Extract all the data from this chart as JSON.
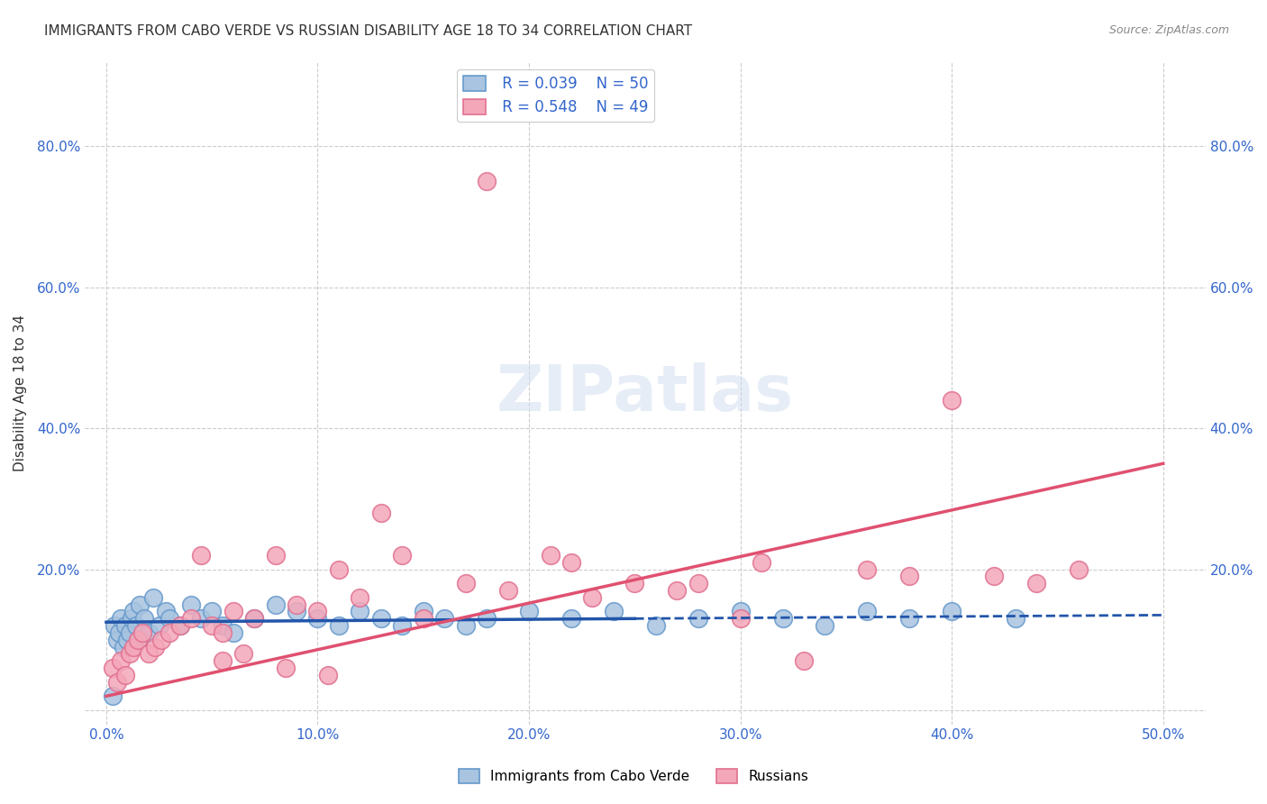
{
  "title": "IMMIGRANTS FROM CABO VERDE VS RUSSIAN DISABILITY AGE 18 TO 34 CORRELATION CHART",
  "source": "Source: ZipAtlas.com",
  "ylabel": "Disability Age 18 to 34",
  "x_ticks": [
    0.0,
    10.0,
    20.0,
    30.0,
    40.0,
    50.0
  ],
  "x_tick_labels": [
    "0.0%",
    "10.0%",
    "20.0%",
    "30.0%",
    "40.0%",
    "50.0%"
  ],
  "y_ticks": [
    0.0,
    0.2,
    0.4,
    0.6,
    0.8
  ],
  "y_tick_labels": [
    "",
    "20.0%",
    "40.0%",
    "60.0%",
    "80.0%"
  ],
  "xlim": [
    -1.0,
    52.0
  ],
  "ylim": [
    -0.02,
    0.92
  ],
  "blue_R": "0.039",
  "blue_N": "50",
  "pink_R": "0.548",
  "pink_N": "49",
  "blue_label": "Immigrants from Cabo Verde",
  "pink_label": "Russians",
  "blue_color": "#a8c4e0",
  "pink_color": "#f4a7b9",
  "blue_edge": "#6699cc",
  "pink_edge": "#e07090",
  "blue_line_color": "#2255aa",
  "pink_line_color": "#e05070",
  "watermark": "ZIPatlas",
  "blue_scatter_x": [
    0.4,
    0.5,
    0.6,
    0.7,
    0.8,
    0.9,
    1.0,
    1.1,
    1.2,
    1.3,
    1.4,
    1.5,
    1.6,
    1.8,
    2.0,
    2.2,
    2.5,
    2.8,
    3.0,
    3.5,
    4.0,
    4.5,
    5.0,
    5.5,
    6.0,
    7.0,
    8.0,
    9.0,
    10.0,
    11.0,
    12.0,
    13.0,
    14.0,
    15.0,
    16.0,
    17.0,
    18.0,
    20.0,
    22.0,
    24.0,
    26.0,
    28.0,
    30.0,
    32.0,
    34.0,
    36.0,
    38.0,
    40.0,
    43.0,
    0.3
  ],
  "blue_scatter_y": [
    0.12,
    0.1,
    0.11,
    0.13,
    0.09,
    0.12,
    0.1,
    0.11,
    0.13,
    0.14,
    0.12,
    0.1,
    0.15,
    0.13,
    0.11,
    0.16,
    0.12,
    0.14,
    0.13,
    0.12,
    0.15,
    0.13,
    0.14,
    0.12,
    0.11,
    0.13,
    0.15,
    0.14,
    0.13,
    0.12,
    0.14,
    0.13,
    0.12,
    0.14,
    0.13,
    0.12,
    0.13,
    0.14,
    0.13,
    0.14,
    0.12,
    0.13,
    0.14,
    0.13,
    0.12,
    0.14,
    0.13,
    0.14,
    0.13,
    0.02
  ],
  "pink_scatter_x": [
    0.3,
    0.5,
    0.7,
    0.9,
    1.1,
    1.3,
    1.5,
    1.7,
    2.0,
    2.3,
    2.6,
    3.0,
    3.5,
    4.0,
    4.5,
    5.0,
    5.5,
    6.0,
    7.0,
    8.0,
    9.0,
    10.0,
    11.0,
    12.0,
    13.0,
    15.0,
    17.0,
    19.0,
    21.0,
    23.0,
    25.0,
    27.0,
    30.0,
    33.0,
    36.0,
    38.0,
    40.0,
    42.0,
    44.0,
    46.0,
    22.0,
    28.0,
    31.0,
    5.5,
    6.5,
    8.5,
    10.5,
    14.0,
    18.0
  ],
  "pink_scatter_y": [
    0.06,
    0.04,
    0.07,
    0.05,
    0.08,
    0.09,
    0.1,
    0.11,
    0.08,
    0.09,
    0.1,
    0.11,
    0.12,
    0.13,
    0.22,
    0.12,
    0.11,
    0.14,
    0.13,
    0.22,
    0.15,
    0.14,
    0.2,
    0.16,
    0.28,
    0.13,
    0.18,
    0.17,
    0.22,
    0.16,
    0.18,
    0.17,
    0.13,
    0.07,
    0.2,
    0.19,
    0.44,
    0.19,
    0.18,
    0.2,
    0.21,
    0.18,
    0.21,
    0.07,
    0.08,
    0.06,
    0.05,
    0.22,
    0.75
  ],
  "blue_trendline_x": [
    0.0,
    50.0
  ],
  "blue_trendline_y": [
    0.125,
    0.135
  ],
  "blue_trend_solid_end": 25.0,
  "pink_trendline_x": [
    0.0,
    50.0
  ],
  "pink_trendline_y": [
    0.02,
    0.35
  ],
  "grid_color": "#cccccc",
  "bg_color": "#ffffff",
  "title_color": "#333333",
  "axis_label_color": "#333333",
  "tick_label_color_x": "#3366cc",
  "tick_label_color_y": "#3366cc"
}
